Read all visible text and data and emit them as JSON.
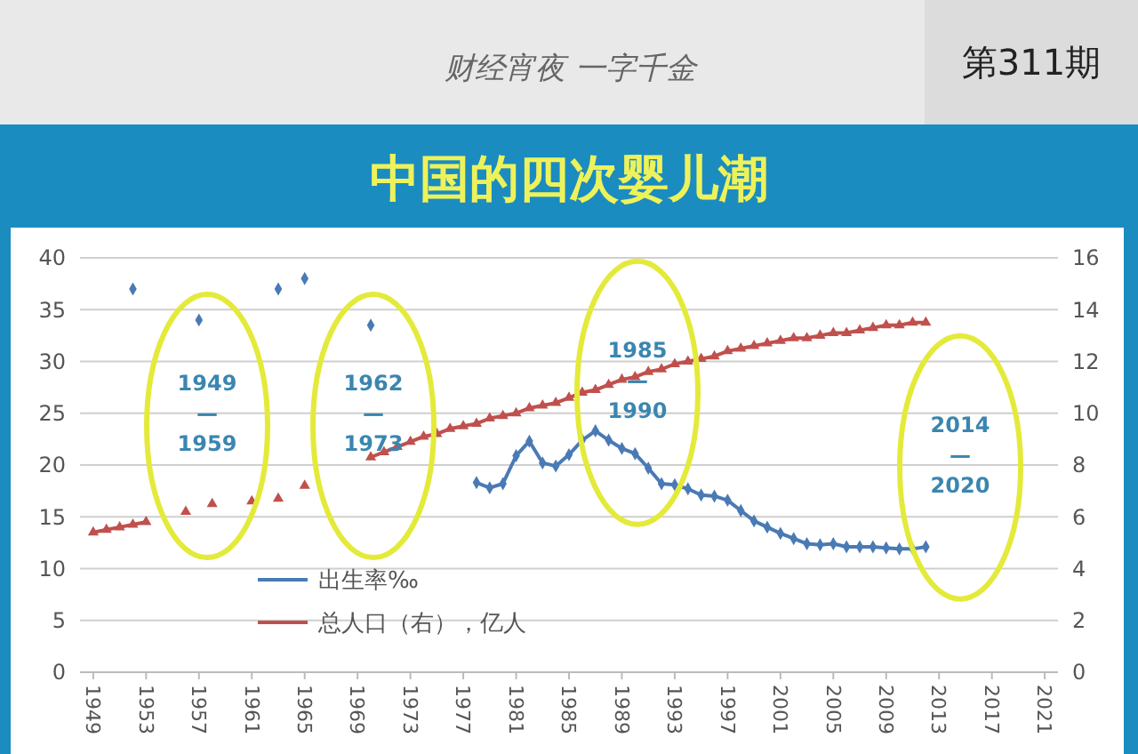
{
  "chart_data": {
    "type": "line",
    "title": "中国的四次婴儿潮",
    "annotations": [
      "财经宵夜 一字千金",
      "第311期",
      "1949\n—\n1959",
      "1962\n—\n1973",
      "1985\n—\n1990",
      "2014\n—\n2020"
    ],
    "xlim": [
      1948,
      2022
    ],
    "xticks": [
      1949,
      1953,
      1957,
      1961,
      1965,
      1969,
      1973,
      1977,
      1981,
      1985,
      1989,
      1993,
      1997,
      2001,
      2005,
      2009,
      2013,
      2017,
      2021
    ],
    "ylim": [
      0,
      40
    ],
    "yticks": [
      0,
      5,
      10,
      15,
      20,
      25,
      30,
      35,
      40
    ],
    "y2lim": [
      0,
      16
    ],
    "y2ticks": [
      0,
      2,
      4,
      6,
      8,
      10,
      12,
      14,
      16
    ],
    "grid": "y",
    "legend": "bottom left",
    "series": [
      {
        "name": "出生率‰",
        "color": "#4a7ab5",
        "marker": "diamond",
        "x": [
          1952,
          1953,
          1957,
          1958,
          1963,
          1964,
          1965,
          1966,
          1970,
          1971,
          1978,
          1979,
          1980,
          1981,
          1982,
          1983,
          1984,
          1985,
          1986,
          1987,
          1988,
          1989,
          1990,
          1991,
          1992,
          1993,
          1994,
          1995,
          1996,
          1997,
          1998,
          1999,
          2000,
          2001,
          2002,
          2003,
          2004,
          2005,
          2006,
          2007,
          2008,
          2009,
          2010,
          2011,
          2012
        ],
        "values": [
          37,
          null,
          34,
          null,
          37,
          null,
          38,
          null,
          33.5,
          null,
          18.3,
          17.8,
          18.2,
          20.9,
          22.3,
          20.2,
          19.9,
          21.0,
          22.4,
          23.3,
          22.4,
          21.6,
          21.1,
          19.7,
          18.2,
          18.1,
          17.7,
          17.1,
          17.0,
          16.6,
          15.6,
          14.6,
          14.0,
          13.4,
          12.9,
          12.4,
          12.3,
          12.4,
          12.1,
          12.1,
          12.1,
          12.0,
          11.9,
          11.9,
          12.1
        ]
      },
      {
        "name": "总人口（右），亿人",
        "color": "#c0504d",
        "marker": "triangle",
        "axis": "y2",
        "x": [
          1949,
          1950,
          1951,
          1952,
          1953,
          1954,
          1956,
          1957,
          1958,
          1959,
          1961,
          1962,
          1963,
          1964,
          1965,
          1966,
          1970,
          1971,
          1972,
          1973,
          1974,
          1975,
          1976,
          1977,
          1978,
          1979,
          1980,
          1981,
          1982,
          1983,
          1984,
          1985,
          1986,
          1987,
          1988,
          1989,
          1990,
          1991,
          1992,
          1993,
          1994,
          1995,
          1996,
          1997,
          1998,
          1999,
          2000,
          2001,
          2002,
          2003,
          2004,
          2005,
          2006,
          2007,
          2008,
          2009,
          2010,
          2011,
          2012
        ],
        "values": [
          5.4,
          5.5,
          5.6,
          5.7,
          5.8,
          null,
          6.2,
          null,
          6.5,
          null,
          6.6,
          null,
          6.7,
          null,
          7.2,
          null,
          8.3,
          8.5,
          8.7,
          8.9,
          9.1,
          9.2,
          9.4,
          9.5,
          9.6,
          9.8,
          9.9,
          10.0,
          10.2,
          10.3,
          10.4,
          10.6,
          10.8,
          10.9,
          11.1,
          11.3,
          11.4,
          11.6,
          11.7,
          11.9,
          12.0,
          12.1,
          12.2,
          12.4,
          12.5,
          12.6,
          12.7,
          12.8,
          12.9,
          12.9,
          13.0,
          13.1,
          13.1,
          13.2,
          13.3,
          13.4,
          13.4,
          13.5,
          13.5
        ]
      }
    ]
  }
}
